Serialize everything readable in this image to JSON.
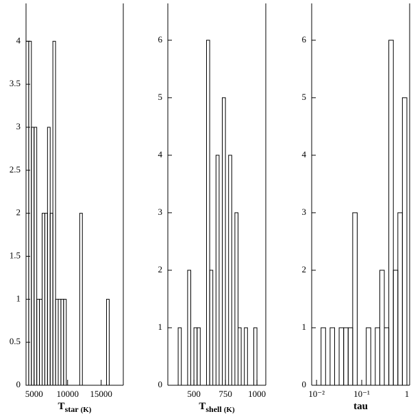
{
  "chart_data": [
    {
      "type": "histogram",
      "xlabel": {
        "main": "T",
        "sub": "star",
        "unit": "(K)"
      },
      "bins": [
        3800,
        4200,
        4600,
        5000,
        5400,
        5800,
        6200,
        6600,
        7000,
        7400,
        7800,
        8200,
        8600,
        9000,
        9400,
        9800,
        10200,
        10600,
        11000,
        11400,
        11800,
        12200,
        12600,
        13000,
        13400,
        13800,
        14200,
        14600,
        15000,
        15400,
        15800,
        16200,
        16600
      ],
      "values": [
        4,
        4,
        3,
        3,
        1,
        1,
        2,
        2,
        3,
        2,
        4,
        1,
        1,
        1,
        1,
        0,
        0,
        0,
        0,
        0,
        2,
        0,
        0,
        0,
        0,
        0,
        0,
        0,
        0,
        0,
        1,
        0
      ],
      "color": "#000000",
      "xlim": [
        3800,
        18300
      ],
      "xticks": [
        5000,
        10000,
        15000
      ],
      "ylim": [
        0,
        4.44
      ],
      "yticks": [
        0,
        0.5,
        1,
        1.5,
        2,
        2.5,
        3,
        3.5,
        4
      ]
    },
    {
      "type": "histogram",
      "xlabel": {
        "main": "T",
        "sub": "shell",
        "unit": "(K)"
      },
      "bins": [
        375,
        400,
        425,
        450,
        475,
        500,
        525,
        550,
        575,
        600,
        625,
        650,
        675,
        700,
        725,
        750,
        775,
        800,
        825,
        850,
        875,
        900,
        925,
        950,
        975,
        1000
      ],
      "values": [
        1,
        0,
        0,
        2,
        0,
        1,
        1,
        0,
        0,
        6,
        2,
        0,
        4,
        0,
        5,
        0,
        4,
        0,
        3,
        1,
        0,
        1,
        0,
        0,
        1
      ],
      "color": "#000000",
      "xlim": [
        293,
        1070
      ],
      "xticks": [
        500,
        750,
        1000
      ],
      "ylim": [
        0,
        6.64
      ],
      "yticks": [
        0,
        1,
        2,
        3,
        4,
        5,
        6
      ]
    },
    {
      "type": "histogram",
      "xlabel": {
        "main": "tau"
      },
      "xscale": "log",
      "bins": [
        0.01,
        0.01259,
        0.01585,
        0.01995,
        0.02512,
        0.03162,
        0.03981,
        0.05012,
        0.0631,
        0.07943,
        0.1,
        0.1259,
        0.1585,
        0.1995,
        0.2512,
        0.3162,
        0.3981,
        0.5012,
        0.631,
        0.7943,
        1
      ],
      "values": [
        0,
        1,
        0,
        1,
        0,
        1,
        1,
        1,
        3,
        0,
        0,
        1,
        0,
        1,
        2,
        1,
        6,
        2,
        3,
        5
      ],
      "color": "#000000",
      "xlim": [
        0.0078,
        1.15
      ],
      "xticks": [
        {
          "value": 0.01,
          "label": "10⁻²"
        },
        {
          "value": 0.1,
          "label": "10⁻¹"
        },
        1
      ],
      "ylim": [
        0,
        6.64
      ],
      "yticks": [
        0,
        1,
        2,
        3,
        4,
        5,
        6
      ]
    }
  ]
}
